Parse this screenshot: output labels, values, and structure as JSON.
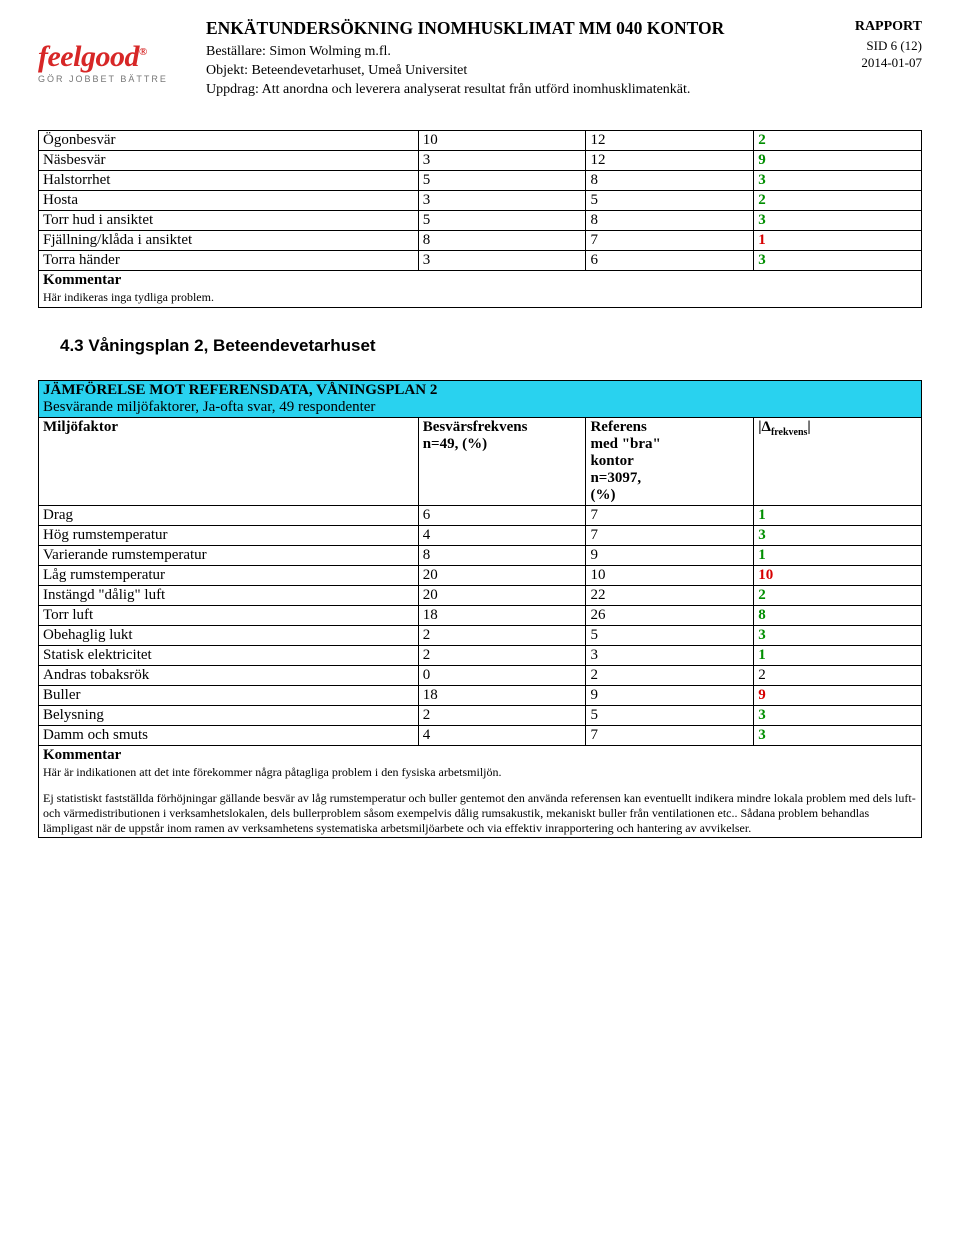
{
  "header": {
    "title": "ENKÄTUNDERSÖKNING INOMHUSKLIMAT MM 040 KONTOR",
    "bestallare_label": "Beställare:",
    "bestallare_value": "Simon Wolming m.fl.",
    "objekt_label": "Objekt:",
    "objekt_value": "Beteendevetarhuset, Umeå Universitet",
    "uppdrag_label": "Uppdrag:",
    "uppdrag_value": "Att anordna och leverera analyserat resultat från utförd inomhusklimatenkät.",
    "rapport": "RAPPORT",
    "sid": "SID 6 (12)",
    "date": "2014-01-07",
    "logo_main": "feelgood",
    "logo_sub": "GÖR JOBBET BÄTTRE"
  },
  "table1": {
    "rows": [
      {
        "label": "Ögonbesvär",
        "a": "10",
        "b": "12",
        "d": "2",
        "cls": "delta-green"
      },
      {
        "label": "Näsbesvär",
        "a": "3",
        "b": "12",
        "d": "9",
        "cls": "delta-green"
      },
      {
        "label": "Halstorrhet",
        "a": "5",
        "b": "8",
        "d": "3",
        "cls": "delta-green"
      },
      {
        "label": "Hosta",
        "a": "3",
        "b": "5",
        "d": "2",
        "cls": "delta-green"
      },
      {
        "label": "Torr hud i ansiktet",
        "a": "5",
        "b": "8",
        "d": "3",
        "cls": "delta-green"
      },
      {
        "label": "Fjällning/klåda i ansiktet",
        "a": "8",
        "b": "7",
        "d": "1",
        "cls": "delta-red"
      },
      {
        "label": "Torra händer",
        "a": "3",
        "b": "6",
        "d": "3",
        "cls": "delta-green"
      }
    ],
    "comment_label": "Kommentar",
    "comment_note": "Här indikeras inga tydliga problem."
  },
  "section_heading": "4.3 Våningsplan 2, Beteendevetarhuset",
  "table2": {
    "header_title": "JÄMFÖRELSE MOT REFERENSDATA, VÅNINGSPLAN 2",
    "header_sub": "Besvärande miljöfaktorer, Ja-ofta svar, 49 respondenter",
    "col_miljofaktor": "Miljöfaktor",
    "col_besvars": "Besvärsfrekvens n=49, (%)",
    "col_referens": "Referens med \"bra\" kontor n=3097, (%)",
    "col_delta": "|Δ",
    "col_delta_sub": "frekvens",
    "col_delta_end": "|",
    "rows": [
      {
        "label": "Drag",
        "a": "6",
        "b": "7",
        "d": "1",
        "cls": "delta-green"
      },
      {
        "label": "Hög rumstemperatur",
        "a": "4",
        "b": "7",
        "d": "3",
        "cls": "delta-green"
      },
      {
        "label": "Varierande rumstemperatur",
        "a": "8",
        "b": "9",
        "d": "1",
        "cls": "delta-green"
      },
      {
        "label": "Låg rumstemperatur",
        "a": "20",
        "b": "10",
        "d": "10",
        "cls": "delta-red"
      },
      {
        "label": "Instängd \"dålig\" luft",
        "a": "20",
        "b": "22",
        "d": "2",
        "cls": "delta-green"
      },
      {
        "label": "Torr luft",
        "a": "18",
        "b": "26",
        "d": "8",
        "cls": "delta-green"
      },
      {
        "label": "Obehaglig lukt",
        "a": "2",
        "b": "5",
        "d": "3",
        "cls": "delta-green"
      },
      {
        "label": "Statisk elektricitet",
        "a": "2",
        "b": "3",
        "d": "1",
        "cls": "delta-green"
      },
      {
        "label": "Andras tobaksrök",
        "a": "0",
        "b": "2",
        "d": "2",
        "cls": "delta-black"
      },
      {
        "label": "Buller",
        "a": "18",
        "b": "9",
        "d": "9",
        "cls": "delta-red"
      },
      {
        "label": "Belysning",
        "a": "2",
        "b": "5",
        "d": "3",
        "cls": "delta-green"
      },
      {
        "label": "Damm och smuts",
        "a": "4",
        "b": "7",
        "d": "3",
        "cls": "delta-green"
      }
    ],
    "comment_label": "Kommentar",
    "comment_note": "Här är indikationen att det inte förekommer några påtagliga problem i den fysiska arbetsmiljön.",
    "bottom_para": "Ej statistiskt fastställda förhöjningar gällande besvär av låg rumstemperatur och buller gentemot den använda referensen kan eventuellt indikera mindre lokala problem med dels luft- och värmedistributionen i verksamhetslokalen, dels bullerproblem såsom exempelvis dålig rumsakustik, mekaniskt buller från ventilationen etc.. Sådana problem behandlas lämpligast när de uppstår inom ramen av verksamhetens systematiska arbetsmiljöarbete och via effektiv inrapportering och hantering av avvikelser."
  }
}
